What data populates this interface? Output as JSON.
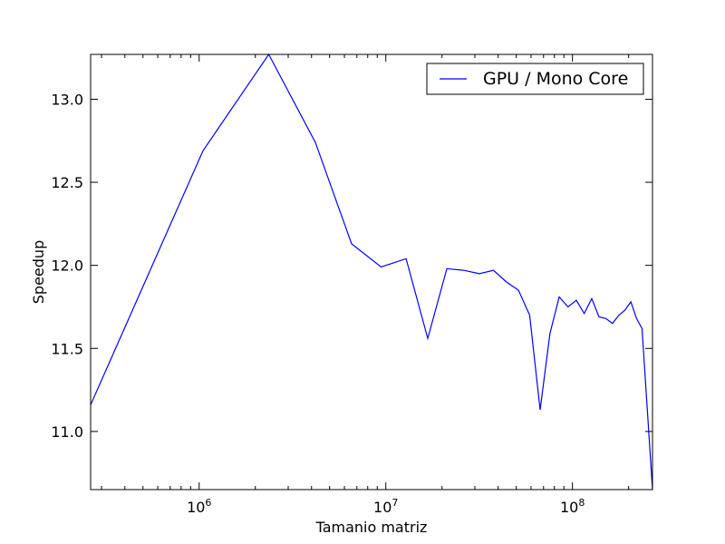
{
  "chart_data": {
    "type": "line",
    "xlabel": "Tamanio matriz",
    "ylabel": "Speedup",
    "xscale": "log",
    "xlim": [
      262144,
      268435456
    ],
    "ylim": [
      10.65,
      13.27
    ],
    "x_ticks": [
      {
        "value": 1000000,
        "base": "10",
        "exp": "6"
      },
      {
        "value": 10000000,
        "base": "10",
        "exp": "7"
      },
      {
        "value": 100000000,
        "base": "10",
        "exp": "8"
      }
    ],
    "y_ticks": [
      11.0,
      11.5,
      12.0,
      12.5,
      13.0
    ],
    "grid": false,
    "legend_position": "top-right",
    "series": [
      {
        "name": "GPU / Mono Core",
        "color": "#0000ff",
        "x": [
          262144,
          1048576,
          2359296,
          4194304,
          6553600,
          9437184,
          12845056,
          16777216,
          21233664,
          26214400,
          31719424,
          37748736,
          44302336,
          51380224,
          58982400,
          67108864,
          75759616,
          84934656,
          94633984,
          104857600,
          115605504,
          126877696,
          138674176,
          150994944,
          163840000,
          177209344,
          191102976,
          205520896,
          220463104,
          235929600,
          268435456
        ],
        "y": [
          11.16,
          12.69,
          13.27,
          12.74,
          12.13,
          11.99,
          12.04,
          11.56,
          11.98,
          11.97,
          11.95,
          11.97,
          11.9,
          11.85,
          11.7,
          11.13,
          11.59,
          11.81,
          11.75,
          11.79,
          11.71,
          11.8,
          11.69,
          11.68,
          11.65,
          11.7,
          11.73,
          11.78,
          11.68,
          11.62,
          10.65
        ]
      }
    ]
  }
}
